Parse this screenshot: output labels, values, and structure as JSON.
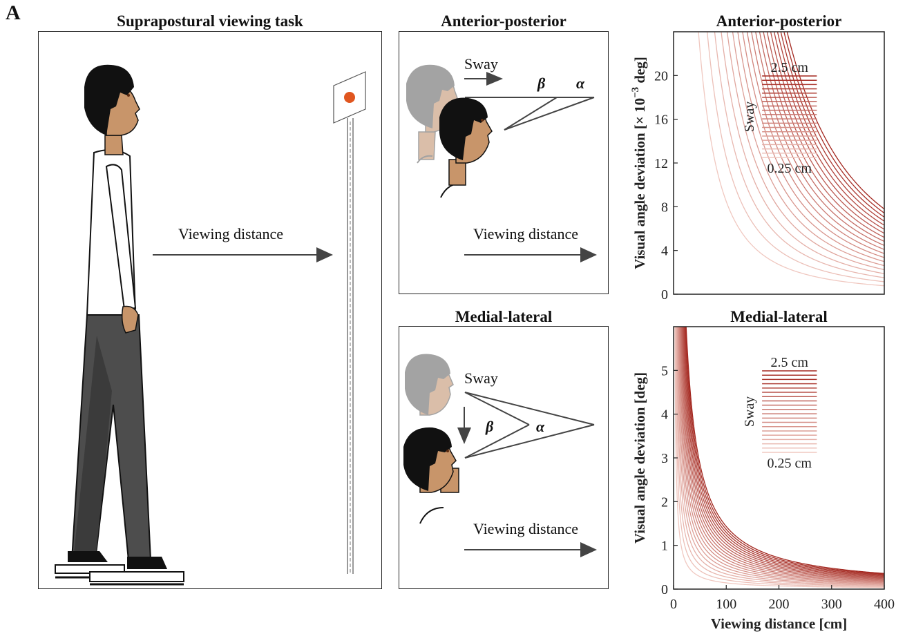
{
  "panel_label": "A",
  "task_panel": {
    "title": "Suprapostural viewing task",
    "arrow_label": "Viewing distance"
  },
  "ap_diagram": {
    "title": "Anterior-posterior",
    "sway_label": "Sway",
    "beta": "β",
    "alpha": "α",
    "distance_label": "Viewing distance"
  },
  "ml_diagram": {
    "title": "Medial-lateral",
    "sway_label": "Sway",
    "beta": "β",
    "alpha": "α",
    "distance_label": "Viewing distance"
  },
  "colors": {
    "curve_dark": "#a3271f",
    "curve_light": "#f0c8c0",
    "target_dot": "#e0561f",
    "skin": "#c8956a",
    "hair": "#111111",
    "pants": "#4d4d4d",
    "ghost": "#9a9a9a"
  },
  "chart_data": [
    {
      "type": "line",
      "title": "Anterior-posterior",
      "xlabel": "",
      "ylabel_prefix": "Visual angle deviation [× 10",
      "ylabel_exp": "−3",
      "ylabel_suffix": " deg]",
      "xlim": [
        0,
        400
      ],
      "ylim": [
        0,
        24
      ],
      "yticks": [
        0,
        4,
        8,
        12,
        16,
        20
      ],
      "legend": {
        "title": "Sway",
        "top": "2.5 cm",
        "bottom": "0.25 cm"
      },
      "sway_cm": {
        "min": 0.25,
        "max": 2.5,
        "count": 20
      },
      "model": "ap"
    },
    {
      "type": "line",
      "title": "Medial-lateral",
      "xlabel": "Viewing distance [cm]",
      "ylabel": "Visual angle deviation [deg]",
      "xlim": [
        0,
        400
      ],
      "ylim": [
        0,
        6
      ],
      "xticks": [
        0,
        100,
        200,
        300,
        400
      ],
      "yticks": [
        0,
        1,
        2,
        3,
        4,
        5
      ],
      "legend": {
        "title": "Sway",
        "top": "2.5 cm",
        "bottom": "0.25 cm"
      },
      "sway_cm": {
        "min": 0.25,
        "max": 2.5,
        "count": 20
      },
      "model": "ml"
    }
  ]
}
